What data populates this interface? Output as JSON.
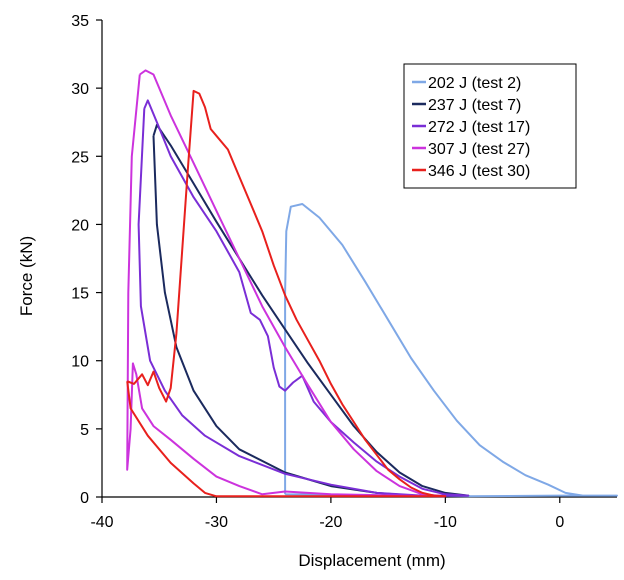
{
  "chart_data": {
    "type": "line",
    "title": "",
    "xlabel": "Displacement (mm)",
    "ylabel": "Force (kN)",
    "xlim": [
      -40,
      5
    ],
    "ylim": [
      0,
      35
    ],
    "x_ticks": [
      -40,
      -30,
      -20,
      -10,
      0
    ],
    "y_ticks": [
      0,
      5,
      10,
      15,
      20,
      25,
      30,
      35
    ],
    "grid": false,
    "legend_position": "top-right",
    "series": [
      {
        "name": "202 J (test 2)",
        "color": "#7fa8e6",
        "points": [
          [
            -24,
            0.2
          ],
          [
            -24,
            5
          ],
          [
            -24,
            10
          ],
          [
            -24,
            15
          ],
          [
            -23.9,
            19.5
          ],
          [
            -23.5,
            21.3
          ],
          [
            -22.5,
            21.5
          ],
          [
            -21,
            20.5
          ],
          [
            -19,
            18.5
          ],
          [
            -17,
            15.8
          ],
          [
            -15,
            13
          ],
          [
            -13,
            10.2
          ],
          [
            -11,
            7.8
          ],
          [
            -9,
            5.6
          ],
          [
            -7,
            3.8
          ],
          [
            -5,
            2.6
          ],
          [
            -3,
            1.6
          ],
          [
            -1,
            0.9
          ],
          [
            0.5,
            0.3
          ],
          [
            2,
            0.1
          ],
          [
            5,
            0.1
          ],
          [
            0,
            0.1
          ],
          [
            -8,
            0.05
          ],
          [
            -24,
            0.2
          ]
        ]
      },
      {
        "name": "237 J (test 7)",
        "color": "#1b2a5e",
        "points": [
          [
            -35.5,
            26.5
          ],
          [
            -35.2,
            27.3
          ],
          [
            -34,
            25.8
          ],
          [
            -32,
            23
          ],
          [
            -30,
            20.2
          ],
          [
            -28,
            17.5
          ],
          [
            -26,
            14.8
          ],
          [
            -24,
            12.3
          ],
          [
            -22,
            9.8
          ],
          [
            -20,
            7.5
          ],
          [
            -18,
            5.2
          ],
          [
            -16,
            3.3
          ],
          [
            -14,
            1.8
          ],
          [
            -12,
            0.8
          ],
          [
            -10,
            0.3
          ],
          [
            -8,
            0.1
          ],
          [
            -12,
            0.05
          ],
          [
            -16,
            0.3
          ],
          [
            -20,
            0.8
          ],
          [
            -24,
            1.8
          ],
          [
            -28,
            3.5
          ],
          [
            -30,
            5.2
          ],
          [
            -32,
            7.8
          ],
          [
            -33.5,
            11
          ],
          [
            -34.5,
            15
          ],
          [
            -35.2,
            20
          ],
          [
            -35.5,
            26.5
          ]
        ]
      },
      {
        "name": "272 J (test 17)",
        "color": "#7a2ed6",
        "points": [
          [
            -36.3,
            28.5
          ],
          [
            -36,
            29.1
          ],
          [
            -35.2,
            27.5
          ],
          [
            -34,
            25
          ],
          [
            -32,
            22
          ],
          [
            -30,
            19.5
          ],
          [
            -28,
            16.5
          ],
          [
            -27,
            13.5
          ],
          [
            -26.2,
            13
          ],
          [
            -25.5,
            11.8
          ],
          [
            -25,
            9.5
          ],
          [
            -24.5,
            8.1
          ],
          [
            -24,
            7.8
          ],
          [
            -23.3,
            8.4
          ],
          [
            -22.5,
            8.9
          ],
          [
            -21.5,
            7
          ],
          [
            -20,
            5.5
          ],
          [
            -18,
            4
          ],
          [
            -16,
            2.6
          ],
          [
            -14,
            1.5
          ],
          [
            -12,
            0.6
          ],
          [
            -10,
            0.2
          ],
          [
            -8,
            0.1
          ],
          [
            -12,
            0.1
          ],
          [
            -16,
            0.3
          ],
          [
            -20,
            0.9
          ],
          [
            -24,
            1.7
          ],
          [
            -28,
            3
          ],
          [
            -31,
            4.5
          ],
          [
            -33,
            6
          ],
          [
            -34.5,
            7.8
          ],
          [
            -35.8,
            10
          ],
          [
            -36.6,
            14
          ],
          [
            -36.8,
            20
          ],
          [
            -36.3,
            28.5
          ]
        ]
      },
      {
        "name": "307 J (test 27)",
        "color": "#cc33dd",
        "points": [
          [
            -36.7,
            31
          ],
          [
            -36.2,
            31.3
          ],
          [
            -35.5,
            31
          ],
          [
            -34,
            28
          ],
          [
            -32,
            24.5
          ],
          [
            -30,
            21
          ],
          [
            -28,
            17.5
          ],
          [
            -26,
            14
          ],
          [
            -24,
            11
          ],
          [
            -22,
            8.2
          ],
          [
            -20,
            5.5
          ],
          [
            -18,
            3.5
          ],
          [
            -16,
            1.9
          ],
          [
            -14,
            0.8
          ],
          [
            -12,
            0.2
          ],
          [
            -10,
            0.05
          ],
          [
            -14,
            0.1
          ],
          [
            -20,
            0.2
          ],
          [
            -24,
            0.4
          ],
          [
            -26,
            0.2
          ],
          [
            -28,
            0.8
          ],
          [
            -30,
            1.5
          ],
          [
            -32,
            2.8
          ],
          [
            -34,
            4.2
          ],
          [
            -35.5,
            5.2
          ],
          [
            -36.5,
            6.5
          ],
          [
            -37,
            9
          ],
          [
            -37.3,
            9.8
          ],
          [
            -37.5,
            5
          ],
          [
            -37.8,
            2
          ],
          [
            -37.7,
            15
          ],
          [
            -37.4,
            25
          ],
          [
            -36.7,
            31
          ]
        ]
      },
      {
        "name": "346 J (test 30)",
        "color": "#e8201d",
        "points": [
          [
            -37.8,
            8.5
          ],
          [
            -37.2,
            8.3
          ],
          [
            -36.5,
            9
          ],
          [
            -36,
            8.2
          ],
          [
            -35.5,
            9.2
          ],
          [
            -35,
            8
          ],
          [
            -34.4,
            7
          ],
          [
            -34,
            8
          ],
          [
            -33.5,
            12
          ],
          [
            -33,
            18
          ],
          [
            -32.5,
            24
          ],
          [
            -32,
            29.8
          ],
          [
            -31.5,
            29.6
          ],
          [
            -31,
            28.6
          ],
          [
            -30.5,
            27
          ],
          [
            -30,
            26.5
          ],
          [
            -29,
            25.5
          ],
          [
            -28,
            23.5
          ],
          [
            -27,
            21.5
          ],
          [
            -26,
            19.5
          ],
          [
            -25,
            17
          ],
          [
            -24,
            14.8
          ],
          [
            -23,
            13
          ],
          [
            -22,
            11.5
          ],
          [
            -21,
            10
          ],
          [
            -20,
            8.3
          ],
          [
            -19,
            6.8
          ],
          [
            -18,
            5.5
          ],
          [
            -17,
            4.2
          ],
          [
            -16,
            3.1
          ],
          [
            -15,
            2
          ],
          [
            -14,
            1.3
          ],
          [
            -13,
            0.7
          ],
          [
            -12,
            0.3
          ],
          [
            -11,
            0.1
          ],
          [
            -10,
            0.05
          ],
          [
            -14,
            0.05
          ],
          [
            -20,
            0.05
          ],
          [
            -26,
            0.05
          ],
          [
            -30,
            0.05
          ],
          [
            -31,
            0.3
          ],
          [
            -32,
            1
          ],
          [
            -34,
            2.5
          ],
          [
            -36,
            4.5
          ],
          [
            -37.5,
            6.5
          ],
          [
            -37.8,
            8.5
          ]
        ]
      }
    ]
  }
}
